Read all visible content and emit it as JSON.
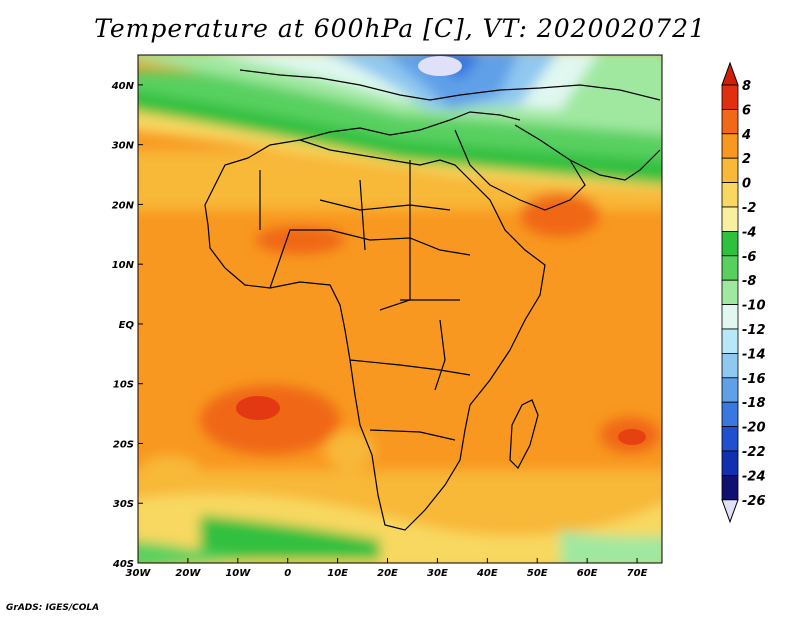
{
  "title": "Temperature at 600hPa [C], VT: 2020020721",
  "credit": "GrADS: IGES/COLA",
  "map": {
    "lon_labels": [
      "30W",
      "20W",
      "10W",
      "0",
      "10E",
      "20E",
      "30E",
      "40E",
      "50E",
      "60E",
      "70E"
    ],
    "lat_labels": [
      "40N",
      "30N",
      "20N",
      "10N",
      "EQ",
      "10S",
      "20S",
      "30S",
      "40S"
    ]
  },
  "colorbar": {
    "labels": [
      "8",
      "6",
      "4",
      "2",
      "0",
      "-2",
      "-4",
      "-6",
      "-8",
      "-10",
      "-12",
      "-14",
      "-16",
      "-18",
      "-20",
      "-22",
      "-24",
      "-26"
    ],
    "colors": [
      "#e03010",
      "#f06818",
      "#f89820",
      "#f8b838",
      "#f8d860",
      "#f8f0a0",
      "#30c040",
      "#58d060",
      "#a0e8a0",
      "#e0f8f0",
      "#b8e8f8",
      "#90c8f0",
      "#60a0e8",
      "#3878e0",
      "#2050d0",
      "#1030b0",
      "#101070"
    ],
    "top_arrow_color": "#d02008",
    "bottom_arrow_color": "#e0e0f8"
  },
  "chart_data": {
    "type": "heatmap",
    "title": "Temperature at 600hPa [C], VT: 2020020721",
    "variable": "Temperature at 600hPa",
    "units": "C",
    "valid_time": "2020020721",
    "x_range": [
      "30W",
      "75E"
    ],
    "y_range": [
      "40S",
      "45N"
    ],
    "levels": [
      -26,
      -24,
      -22,
      -20,
      -18,
      -16,
      -14,
      -12,
      -10,
      -8,
      -6,
      -4,
      -2,
      0,
      2,
      4,
      6,
      8
    ]
  }
}
